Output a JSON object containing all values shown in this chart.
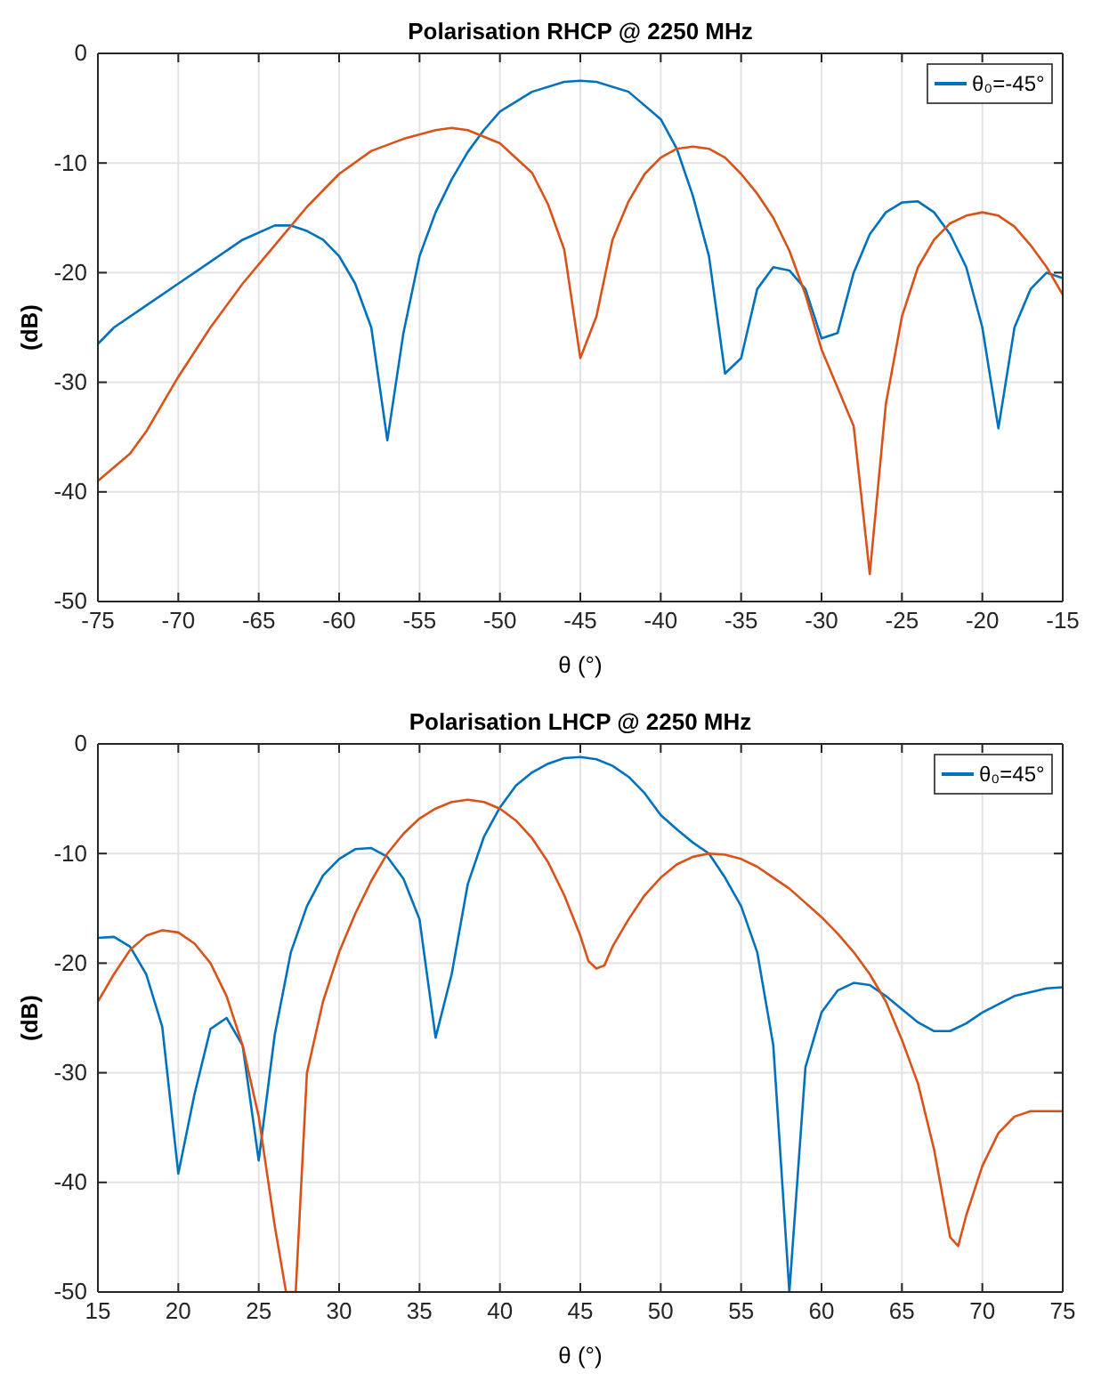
{
  "chart_data": [
    {
      "type": "line",
      "title": "Polarisation RHCP @ 2250 MHz",
      "xlabel": "θ (°)",
      "ylabel": "(dB)",
      "xlim": [
        -75,
        -15
      ],
      "xticks": [
        -75,
        -70,
        -65,
        -60,
        -55,
        -50,
        -45,
        -40,
        -35,
        -30,
        -25,
        -20,
        -15
      ],
      "ylim": [
        -50,
        0
      ],
      "yticks": [
        -50,
        -40,
        -30,
        -20,
        -10,
        0
      ],
      "grid": true,
      "legend": "top right",
      "series": [
        {
          "name": "θ₀=-45°",
          "color": "#0072bd",
          "x": [
            -75,
            -74,
            -72,
            -70,
            -68,
            -66,
            -64,
            -63,
            -62,
            -61,
            -60,
            -59,
            -58,
            -57,
            -56,
            -55,
            -54,
            -53,
            -52,
            -51,
            -50,
            -48,
            -46,
            -45,
            -44,
            -42,
            -40,
            -39,
            -38,
            -37,
            -36,
            -35,
            -34,
            -33,
            -32,
            -31,
            -30,
            -29,
            -28,
            -27,
            -26,
            -25,
            -24,
            -23,
            -22,
            -21,
            -20,
            -19,
            -18,
            -17,
            -16,
            -15
          ],
          "values": [
            -26.5,
            -25,
            -23,
            -21,
            -19,
            -17,
            -15.7,
            -15.7,
            -16.2,
            -17,
            -18.5,
            -21,
            -25,
            -35.3,
            -25.5,
            -18.5,
            -14.5,
            -11.5,
            -9,
            -7,
            -5.3,
            -3.5,
            -2.6,
            -2.5,
            -2.6,
            -3.5,
            -6,
            -8.7,
            -13,
            -18.5,
            -29.2,
            -27.8,
            -21.5,
            -19.5,
            -19.8,
            -21.5,
            -26,
            -25.5,
            -20,
            -16.5,
            -14.5,
            -13.6,
            -13.5,
            -14.5,
            -16.5,
            -19.5,
            -25,
            -34.2,
            -25,
            -21.5,
            -20,
            -20.5
          ]
        },
        {
          "color": "#d95319",
          "x": [
            -75,
            -73,
            -72,
            -70,
            -68,
            -66,
            -64,
            -62,
            -60,
            -58,
            -56,
            -54,
            -53,
            -52,
            -50,
            -48,
            -47,
            -46,
            -45,
            -44,
            -43,
            -42,
            -41,
            -40,
            -39,
            -38,
            -37,
            -36,
            -35,
            -34,
            -33,
            -32,
            -31,
            -30,
            -29,
            -28,
            -27,
            -26,
            -25,
            -24,
            -23,
            -22,
            -21,
            -20,
            -19,
            -18,
            -17,
            -16,
            -15
          ],
          "values": [
            -39,
            -36.5,
            -34.5,
            -29.5,
            -25,
            -21,
            -17.5,
            -14,
            -11,
            -8.9,
            -7.8,
            -7,
            -6.8,
            -7,
            -8.2,
            -10.9,
            -13.8,
            -17.9,
            -27.8,
            -24,
            -17,
            -13.5,
            -11,
            -9.5,
            -8.7,
            -8.5,
            -8.7,
            -9.5,
            -11,
            -12.8,
            -15,
            -18,
            -22,
            -27,
            -30.5,
            -34,
            -47.5,
            -32,
            -24,
            -19.5,
            -17,
            -15.5,
            -14.8,
            -14.5,
            -14.8,
            -15.8,
            -17.5,
            -19.5,
            -22
          ]
        }
      ]
    },
    {
      "type": "line",
      "title": "Polarisation LHCP @ 2250 MHz",
      "xlabel": "θ (°)",
      "ylabel": "(dB)",
      "xlim": [
        15,
        75
      ],
      "xticks": [
        15,
        20,
        25,
        30,
        35,
        40,
        45,
        50,
        55,
        60,
        65,
        70,
        75
      ],
      "ylim": [
        -50,
        0
      ],
      "yticks": [
        -50,
        -40,
        -30,
        -20,
        -10,
        0
      ],
      "grid": true,
      "legend": "top right",
      "series": [
        {
          "name": "θ₀=45°",
          "color": "#0072bd",
          "x": [
            15,
            16,
            17,
            18,
            19,
            20,
            21,
            22,
            23,
            24,
            25,
            26,
            27,
            28,
            29,
            30,
            31,
            32,
            33,
            34,
            35,
            36,
            37,
            38,
            39,
            40,
            41,
            42,
            43,
            44,
            45,
            46,
            47,
            48,
            49,
            50,
            51,
            52,
            53,
            54,
            55,
            56,
            57,
            58,
            59,
            60,
            61,
            62,
            63,
            64,
            65,
            66,
            67,
            68,
            69,
            70,
            72,
            74,
            75
          ],
          "values": [
            -17.7,
            -17.6,
            -18.5,
            -21,
            -25.8,
            -39.2,
            -32,
            -26,
            -25,
            -27.5,
            -38,
            -26.5,
            -19,
            -14.8,
            -12,
            -10.5,
            -9.6,
            -9.5,
            -10.3,
            -12.3,
            -16,
            -26.8,
            -21,
            -12.8,
            -8.5,
            -5.8,
            -3.8,
            -2.6,
            -1.8,
            -1.3,
            -1.2,
            -1.4,
            -2,
            -3,
            -4.5,
            -6.5,
            -7.8,
            -9,
            -10,
            -12.2,
            -14.8,
            -19,
            -27.5,
            -50,
            -29.5,
            -24.5,
            -22.5,
            -21.8,
            -22,
            -23,
            -24.2,
            -25.4,
            -26.2,
            -26.2,
            -25.5,
            -24.5,
            -23,
            -22.3,
            -22.2
          ]
        },
        {
          "color": "#d95319",
          "x": [
            15,
            16,
            17,
            18,
            19,
            20,
            21,
            22,
            23,
            24,
            25,
            26,
            26.7,
            27.3,
            28,
            29,
            30,
            31,
            32,
            33,
            34,
            35,
            36,
            37,
            38,
            39,
            40,
            41,
            42,
            43,
            44,
            45,
            45.5,
            46,
            46.5,
            47,
            48,
            49,
            50,
            51,
            52,
            53,
            54,
            55,
            56,
            57,
            58,
            59,
            60,
            61,
            62,
            63,
            64,
            65,
            66,
            67,
            68,
            68.5,
            69,
            70,
            71,
            72,
            73,
            75
          ],
          "values": [
            -23.5,
            -21,
            -18.8,
            -17.5,
            -17,
            -17.2,
            -18.2,
            -20,
            -23,
            -27.5,
            -34,
            -44,
            -50,
            -50,
            -30,
            -23.5,
            -19,
            -15.5,
            -12.5,
            -10,
            -8.2,
            -6.8,
            -5.9,
            -5.3,
            -5.1,
            -5.3,
            -5.9,
            -7,
            -8.6,
            -10.8,
            -13.8,
            -17.5,
            -19.8,
            -20.5,
            -20.2,
            -18.5,
            -16,
            -13.8,
            -12.2,
            -11,
            -10.3,
            -10,
            -10.1,
            -10.5,
            -11.2,
            -12.2,
            -13.2,
            -14.5,
            -15.8,
            -17.3,
            -19,
            -21,
            -23.5,
            -27,
            -31,
            -37,
            -45,
            -45.8,
            -43,
            -38.5,
            -35.5,
            -34,
            -33.5,
            -33.5
          ]
        }
      ]
    }
  ]
}
